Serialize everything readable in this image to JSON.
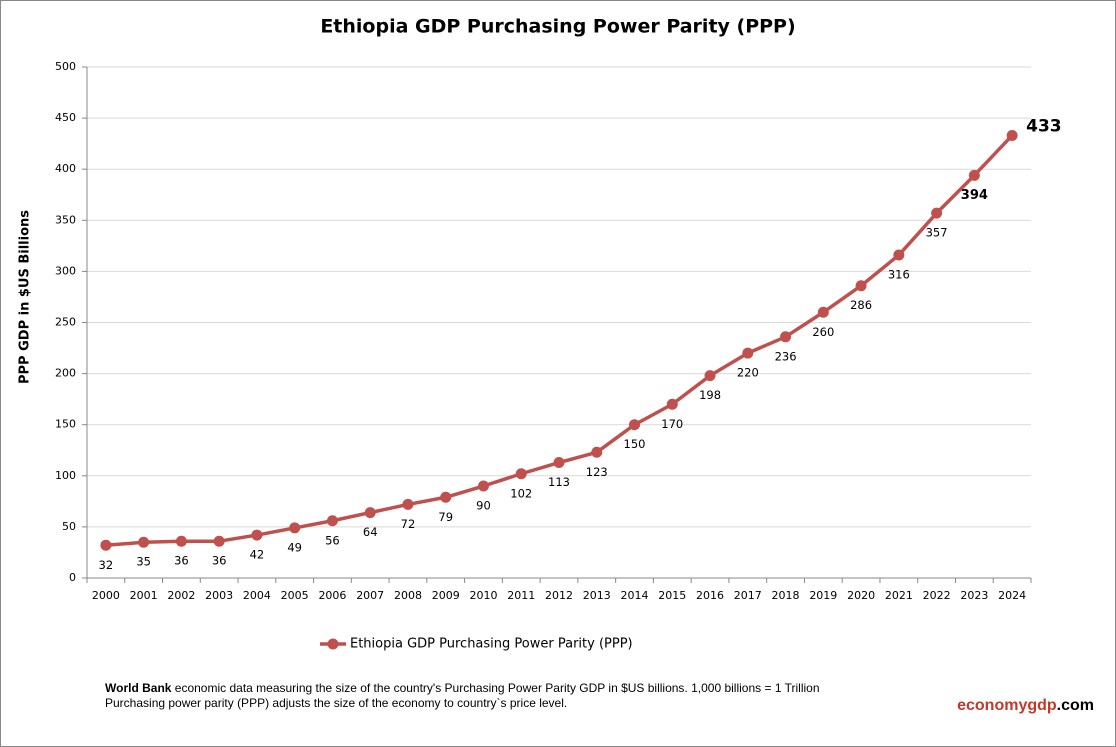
{
  "chart_data": {
    "type": "line",
    "title": "Ethiopia GDP Purchasing Power Parity (PPP)",
    "y_label": "PPP GDP in $US Billions",
    "categories": [
      "2000",
      "2001",
      "2002",
      "2003",
      "2004",
      "2005",
      "2006",
      "2007",
      "2008",
      "2009",
      "2010",
      "2011",
      "2012",
      "2013",
      "2014",
      "2015",
      "2016",
      "2017",
      "2018",
      "2019",
      "2020",
      "2021",
      "2022",
      "2023",
      "2024"
    ],
    "series": [
      {
        "name": "Ethiopia GDP Purchasing Power Parity (PPP)",
        "color": "#c0504d",
        "values": [
          32,
          35,
          36,
          36,
          42,
          49,
          56,
          64,
          72,
          79,
          90,
          102,
          113,
          123,
          150,
          170,
          198,
          220,
          236,
          260,
          286,
          316,
          357,
          394,
          433
        ]
      }
    ],
    "ylim": [
      0,
      500
    ],
    "yticks": [
      0,
      50,
      100,
      150,
      200,
      250,
      300,
      350,
      400,
      450,
      500
    ],
    "grid": true,
    "legend": "bottom"
  },
  "footnote": {
    "source": "World Bank",
    "line1": " economic data  measuring the size of the country's Purchasing Power Parity GDP in $US billions. 1,000 billions = 1 Trillion",
    "line2": "Purchasing power parity (PPP) adjusts the size of the economy to country`s price level."
  },
  "brand": {
    "main": "economygdp",
    "suffix": ".com"
  }
}
